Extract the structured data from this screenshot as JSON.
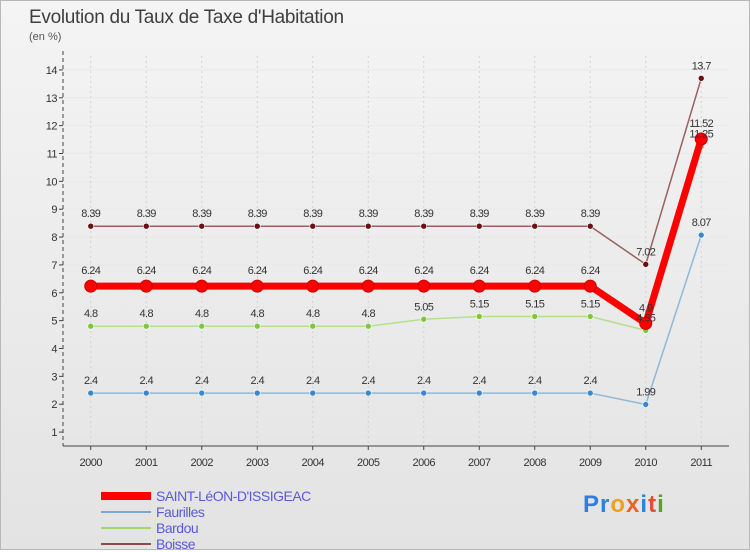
{
  "title": "Evolution du Taux de Taxe d'Habitation",
  "subtitle": "(en %)",
  "logo": {
    "letters": [
      "P",
      "r",
      "o",
      "x",
      "i",
      "t",
      "i"
    ],
    "colors": [
      "#2f7fe0",
      "#2f7fe0",
      "#f0a020",
      "#f06020",
      "#2f7fe0",
      "#e05030",
      "#60a020"
    ]
  },
  "chart_data": {
    "type": "line",
    "categories": [
      "2000",
      "2001",
      "2002",
      "2003",
      "2004",
      "2005",
      "2006",
      "2007",
      "2008",
      "2009",
      "2010",
      "2011"
    ],
    "ylim": [
      0.5,
      14.5
    ],
    "yticks": [
      1,
      2,
      3,
      4,
      5,
      6,
      7,
      8,
      9,
      10,
      11,
      12,
      13,
      14
    ],
    "series": [
      {
        "name": "SAINT-LéON-D'ISSIGEAC",
        "color": "#ff0000",
        "marker": "#ff0000",
        "width": 7,
        "radius": 6,
        "values": [
          6.24,
          6.24,
          6.24,
          6.24,
          6.24,
          6.24,
          6.24,
          6.24,
          6.24,
          6.24,
          4.9,
          11.52
        ],
        "labels": [
          "6.24",
          "6.24",
          "6.24",
          "6.24",
          "6.24",
          "6.24",
          "6.24",
          "6.24",
          "6.24",
          "6.24",
          "4.9",
          "11.52"
        ]
      },
      {
        "name": "Faurilles",
        "color": "#8fb8d8",
        "marker": "#3a88cc",
        "width": 1.5,
        "radius": 3,
        "values": [
          2.4,
          2.4,
          2.4,
          2.4,
          2.4,
          2.4,
          2.4,
          2.4,
          2.4,
          2.4,
          1.99,
          8.07
        ],
        "labels": [
          "2.4",
          "2.4",
          "2.4",
          "2.4",
          "2.4",
          "2.4",
          "2.4",
          "2.4",
          "2.4",
          "2.4",
          "1.99",
          "8.07"
        ]
      },
      {
        "name": "Bardou",
        "color": "#b5e08a",
        "marker": "#7cc83a",
        "width": 1.5,
        "radius": 3,
        "values": [
          4.8,
          4.8,
          4.8,
          4.8,
          4.8,
          4.8,
          5.05,
          5.15,
          5.15,
          5.15,
          4.65,
          11.25
        ],
        "labels": [
          "4.8",
          "4.8",
          "4.8",
          "4.8",
          "4.8",
          "4.8",
          "5.05",
          "5.15",
          "5.15",
          "5.15",
          "4.65",
          "11.25"
        ]
      },
      {
        "name": "Boisse",
        "color": "#9a6060",
        "marker": "#6a1010",
        "width": 1.5,
        "radius": 3,
        "values": [
          8.39,
          8.39,
          8.39,
          8.39,
          8.39,
          8.39,
          8.39,
          8.39,
          8.39,
          8.39,
          7.02,
          13.7
        ],
        "labels": [
          "8.39",
          "8.39",
          "8.39",
          "8.39",
          "8.39",
          "8.39",
          "8.39",
          "8.39",
          "8.39",
          "8.39",
          "7.02",
          "13.7"
        ]
      }
    ],
    "draw_order": [
      1,
      2,
      3,
      0
    ],
    "label_order": [
      3,
      0,
      2,
      1
    ]
  }
}
